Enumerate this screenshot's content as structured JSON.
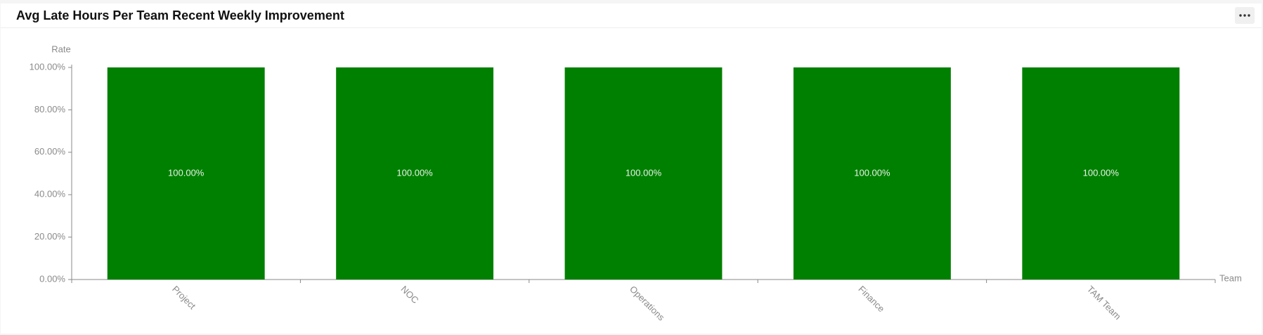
{
  "chart_data": {
    "type": "bar",
    "title": "Avg Late Hours Per Team Recent Weekly Improvement",
    "y_axis_label": "Rate",
    "x_axis_label": "Team",
    "categories": [
      "Project",
      "NOC",
      "Operations",
      "Finance",
      "TAM Team"
    ],
    "values": [
      100,
      100,
      100,
      100,
      100
    ],
    "value_labels": [
      "100.00%",
      "100.00%",
      "100.00%",
      "100.00%",
      "100.00%"
    ],
    "color": "#008000",
    "ylim": [
      0,
      100
    ],
    "yticks": [
      {
        "value": 0,
        "label": "0.00%"
      },
      {
        "value": 20,
        "label": "20.00%"
      },
      {
        "value": 40,
        "label": "40.00%"
      },
      {
        "value": 60,
        "label": "60.00%"
      },
      {
        "value": 80,
        "label": "80.00%"
      },
      {
        "value": 100,
        "label": "100.00%"
      }
    ],
    "grid": false
  }
}
